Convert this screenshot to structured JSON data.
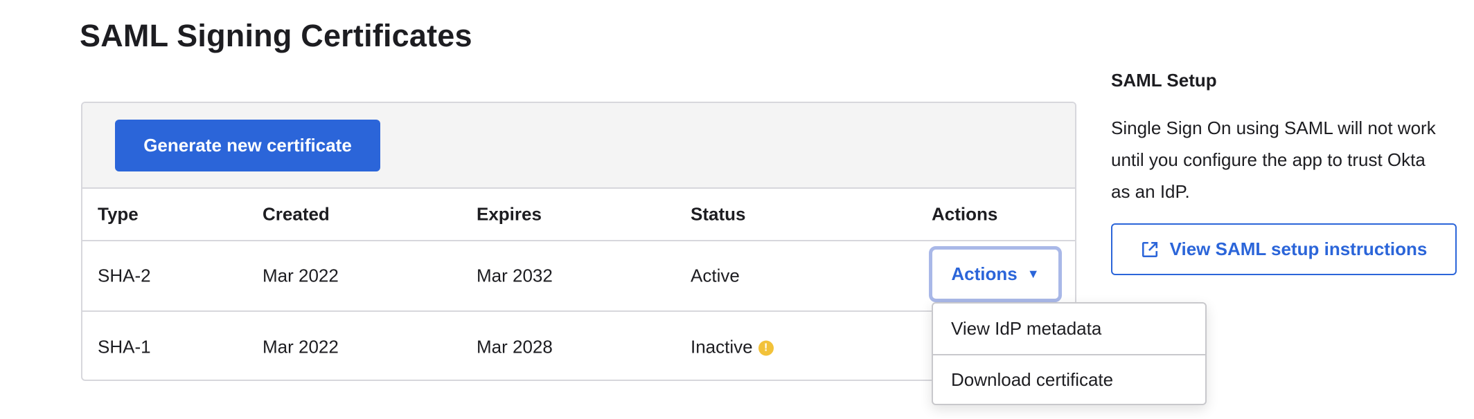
{
  "page_title": "SAML Signing Certificates",
  "toolbar": {
    "generate_label": "Generate new certificate"
  },
  "table": {
    "headers": [
      "Type",
      "Created",
      "Expires",
      "Status",
      "Actions"
    ],
    "rows": [
      {
        "type": "SHA-2",
        "created": "Mar 2022",
        "expires": "Mar 2032",
        "status": "Active"
      },
      {
        "type": "SHA-1",
        "created": "Mar 2022",
        "expires": "Mar 2028",
        "status": "Inactive",
        "status_icon": "warning-icon"
      }
    ]
  },
  "actions_button": {
    "label": "Actions",
    "icon": "caret-down-icon"
  },
  "actions_menu": {
    "items": [
      "View IdP metadata",
      "Download certificate"
    ]
  },
  "sidebar": {
    "heading": "SAML Setup",
    "text": "Single Sign On using SAML will not work until you configure the app to trust Okta as an IdP.",
    "link_label": "View SAML setup instructions",
    "link_icon": "external-link-icon"
  },
  "colors": {
    "primary": "#2b65d9",
    "focus_ring": "#a9b8e8",
    "warning": "#f2c23a"
  }
}
